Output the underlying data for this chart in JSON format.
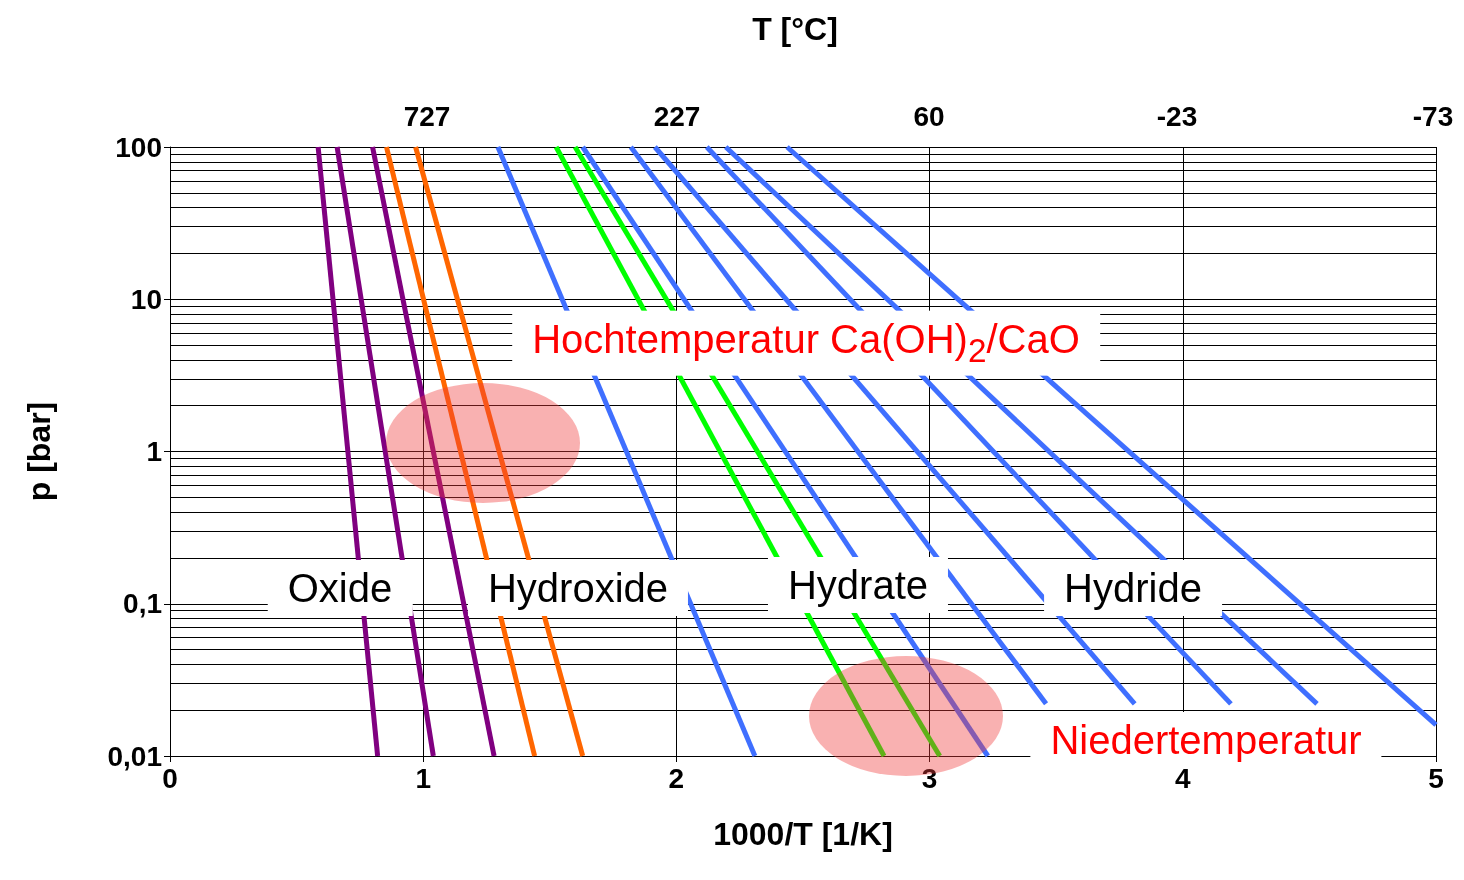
{
  "chart_data": {
    "type": "line",
    "xlabel": "1000/T [1/K]",
    "ylabel": "p [bar]",
    "x2label": "T [°C]",
    "xlim": [
      0,
      5
    ],
    "xticks": [
      0,
      1,
      2,
      3,
      4,
      5
    ],
    "ylim": [
      0.01,
      100
    ],
    "yticks": [
      {
        "value": 0.01,
        "label": "0,01"
      },
      {
        "value": 0.1,
        "label": "0,1"
      },
      1,
      10,
      100
    ],
    "log": "y",
    "grid": true,
    "marker": "none",
    "line_style": "solid",
    "series": [
      {
        "color": "#800080",
        "x": [
          0.585,
          0.82
        ],
        "values": [
          100,
          0.01
        ]
      },
      {
        "color": "#800080",
        "x": [
          0.66,
          1.04
        ],
        "values": [
          100,
          0.01
        ]
      },
      {
        "color": "#800080",
        "x": [
          0.8,
          1.28
        ],
        "values": [
          100,
          0.01
        ]
      },
      {
        "color": "#ff6600",
        "x": [
          0.855,
          1.44
        ],
        "values": [
          100,
          0.01
        ]
      },
      {
        "color": "#ff6600",
        "x": [
          0.97,
          1.63
        ],
        "values": [
          100,
          0.01
        ]
      },
      {
        "color": "#3f6fff",
        "x": [
          1.295,
          2.31
        ],
        "values": [
          100,
          0.01
        ]
      },
      {
        "color": "#00ff00",
        "x": [
          1.525,
          2.82
        ],
        "values": [
          100,
          0.01
        ]
      },
      {
        "color": "#00ff00",
        "x": [
          1.6,
          3.04
        ],
        "values": [
          100,
          0.01
        ]
      },
      {
        "color": "#3f6fff",
        "x": [
          1.63,
          3.23
        ],
        "values": [
          100,
          0.01
        ]
      },
      {
        "color": "#3f6fff",
        "x": [
          1.82,
          3.46
        ],
        "values": [
          100,
          0.022
        ]
      },
      {
        "color": "#3f6fff",
        "x": [
          1.915,
          3.81
        ],
        "values": [
          100,
          0.022
        ]
      },
      {
        "color": "#3f6fff",
        "x": [
          2.12,
          4.19
        ],
        "values": [
          100,
          0.022
        ]
      },
      {
        "color": "#3f6fff",
        "x": [
          2.195,
          4.53
        ],
        "values": [
          100,
          0.022
        ]
      },
      {
        "color": "#3f6fff",
        "x": [
          2.437,
          5
        ],
        "values": [
          100,
          0.016
        ]
      }
    ],
    "annotations": [
      "Hochtemperatur Ca(OH)$_{2}$/CaO",
      "Oxide",
      "Hydroxide",
      "Hydrate",
      "Hydride",
      "Niedertemperatur",
      "727",
      "227",
      "60",
      "-23",
      "-73"
    ]
  }
}
